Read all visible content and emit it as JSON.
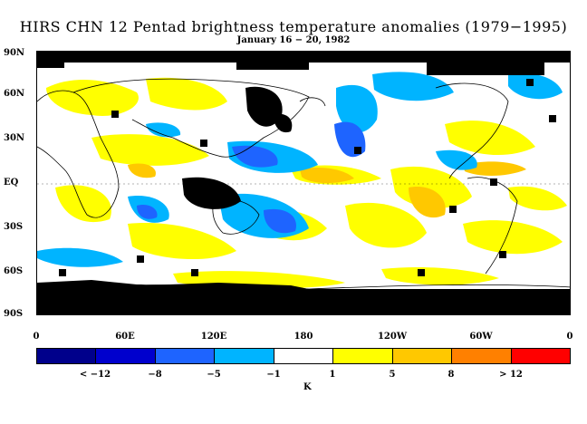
{
  "title": "HIRS CHN 12 Pentad brightness temperature anomalies (1979−1995)",
  "subtitle": "January 16 − 20, 1982",
  "lat_labels": [
    "90N",
    "60N",
    "30N",
    "EQ",
    "30S",
    "60S",
    "90S"
  ],
  "lon_labels": [
    "0",
    "60E",
    "120E",
    "180",
    "120W",
    "60W",
    "0"
  ],
  "colorbar": {
    "colors": [
      "#00008b",
      "#0000cd",
      "#1e64ff",
      "#00b4ff",
      "#ffffff",
      "#ffff00",
      "#ffc800",
      "#ff8000",
      "#ff0000"
    ],
    "labels": [
      "< −12",
      "−8",
      "−5",
      "−1",
      "1",
      "5",
      "8",
      "> 12"
    ],
    "unit": "K"
  },
  "colors": {
    "missing": "#000000",
    "coast": "#000000"
  }
}
